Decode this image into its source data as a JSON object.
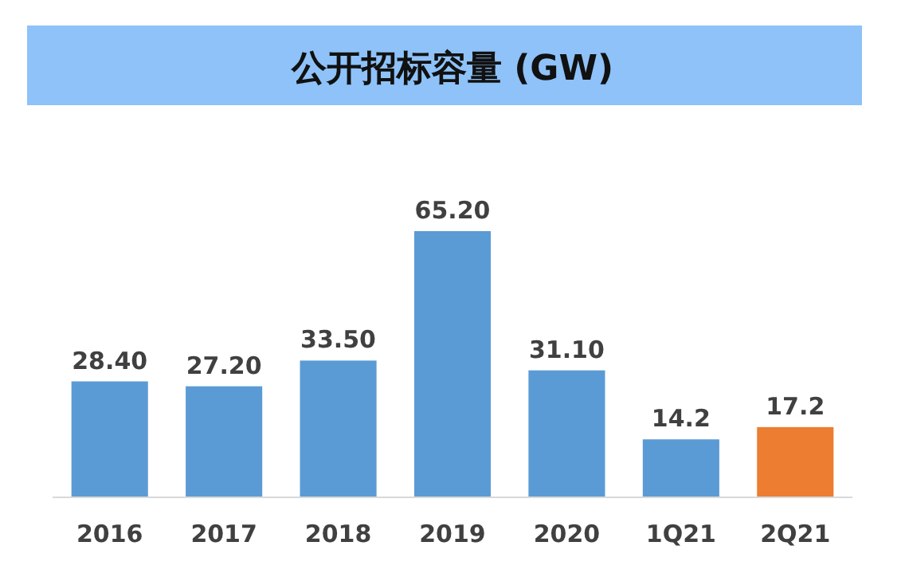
{
  "chart_data": {
    "type": "bar",
    "title": "公开招标容量 (GW)",
    "categories": [
      "2016",
      "2017",
      "2018",
      "2019",
      "2020",
      "1Q21",
      "2Q21"
    ],
    "values": [
      28.4,
      27.2,
      33.5,
      65.2,
      31.1,
      14.2,
      17.2
    ],
    "colors": [
      "#5b9bd5",
      "#5b9bd5",
      "#5b9bd5",
      "#5b9bd5",
      "#5b9bd5",
      "#5b9bd5",
      "#ed7d31"
    ],
    "value_labels": [
      "28.40",
      "27.20",
      "33.50",
      "65.20",
      "31.10",
      "14.2",
      "17.2"
    ]
  }
}
